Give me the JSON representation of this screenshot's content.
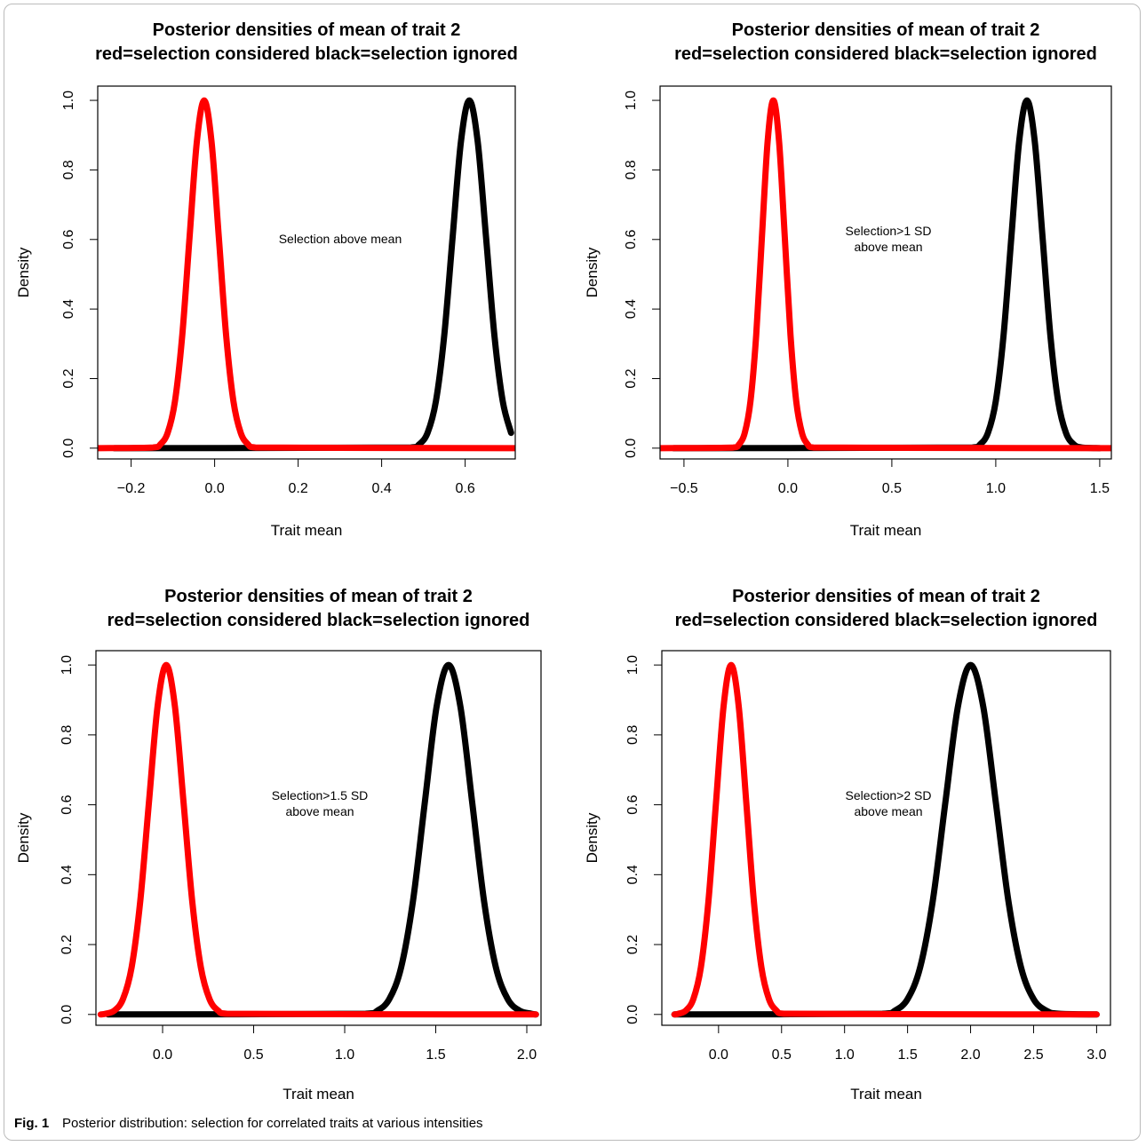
{
  "caption": {
    "label": "Fig. 1",
    "text": "Posterior distribution: selection for correlated traits at various intensities"
  },
  "chart_data": [
    {
      "type": "line",
      "title": "Posterior densities of mean of trait 2",
      "subtitle": "red=selection considered black=selection ignored",
      "annotation": [
        "Selection above mean"
      ],
      "x_label": "Trait mean",
      "y_label": "Density",
      "xlim": [
        -0.28,
        0.72
      ],
      "ylim": [
        -0.031,
        1.041
      ],
      "xticks": [
        {
          "value": -0.2,
          "label": "−0.2"
        },
        {
          "value": 0,
          "label": "0.0"
        },
        0.2,
        0.4,
        0.6
      ],
      "yticks": [
        {
          "value": 0,
          "label": "0.0"
        },
        0.2,
        0.4,
        0.6,
        0.8,
        {
          "value": 1,
          "label": "1.0"
        }
      ],
      "series": [
        {
          "color": "#000000",
          "x": [
            -0.24,
            0.47,
            0.49,
            0.51,
            0.53,
            0.55,
            0.57,
            0.59,
            0.61,
            0.63,
            0.65,
            0.67,
            0.69,
            0.71
          ],
          "values": [
            0,
            0.002,
            0.011,
            0.044,
            0.135,
            0.325,
            0.607,
            0.882,
            1,
            0.882,
            0.607,
            0.325,
            0.135,
            0.044
          ]
        },
        {
          "color": "#ff0000",
          "x": [
            -0.28,
            -0.1475,
            -0.13,
            -0.1125,
            -0.095,
            -0.0775,
            -0.06,
            -0.0425,
            -0.025,
            -0.0075,
            0.01,
            0.0275,
            0.045,
            0.0625,
            0.08,
            0.0975,
            0.72
          ],
          "values": [
            0,
            0.002,
            0.011,
            0.044,
            0.135,
            0.325,
            0.607,
            0.882,
            1,
            0.882,
            0.607,
            0.325,
            0.135,
            0.044,
            0.011,
            0.002,
            0
          ]
        }
      ]
    },
    {
      "type": "line",
      "title": "Posterior densities of mean of trait 2",
      "subtitle": "red=selection considered black=selection ignored",
      "annotation": [
        "Selection>1 SD",
        "above mean"
      ],
      "x_label": "Trait mean",
      "y_label": "Density",
      "xlim": [
        -0.615,
        1.556
      ],
      "ylim": [
        -0.031,
        1.041
      ],
      "xticks": [
        {
          "value": -0.5,
          "label": "−0.5"
        },
        {
          "value": 0,
          "label": "0.0"
        },
        0.5,
        {
          "value": 1,
          "label": "1.0"
        },
        1.5
      ],
      "yticks": [
        {
          "value": 0,
          "label": "0.0"
        },
        0.2,
        0.4,
        0.6,
        0.8,
        {
          "value": 1,
          "label": "1.0"
        }
      ],
      "series": [
        {
          "color": "#000000",
          "x": [
            -0.55,
            0.8875,
            0.925,
            0.9625,
            1.0,
            1.0375,
            1.075,
            1.1125,
            1.15,
            1.1875,
            1.225,
            1.2625,
            1.3,
            1.3375,
            1.375,
            1.4125,
            1.5
          ],
          "values": [
            0,
            0.002,
            0.011,
            0.044,
            0.135,
            0.325,
            0.607,
            0.882,
            1,
            0.882,
            0.607,
            0.325,
            0.135,
            0.044,
            0.011,
            0.002,
            0
          ]
        },
        {
          "color": "#ff0000",
          "x": [
            -0.615,
            -0.2625,
            -0.235,
            -0.2075,
            -0.18,
            -0.1525,
            -0.125,
            -0.0975,
            -0.07,
            -0.0425,
            -0.015,
            0.0125,
            0.04,
            0.0675,
            0.095,
            0.1225,
            1.556
          ],
          "values": [
            0,
            0.002,
            0.011,
            0.044,
            0.135,
            0.325,
            0.607,
            0.882,
            1,
            0.882,
            0.607,
            0.325,
            0.135,
            0.044,
            0.011,
            0.002,
            0
          ]
        }
      ]
    },
    {
      "type": "line",
      "title": "Posterior densities of mean of trait 2",
      "subtitle": "red=selection considered black=selection ignored",
      "annotation": [
        "Selection>1.5 SD",
        "above mean"
      ],
      "x_label": "Trait mean",
      "y_label": "Density",
      "xlim": [
        -0.366,
        2.078
      ],
      "ylim": [
        -0.031,
        1.041
      ],
      "xticks": [
        {
          "value": 0,
          "label": "0.0"
        },
        0.5,
        {
          "value": 1,
          "label": "1.0"
        },
        1.5,
        {
          "value": 2,
          "label": "2.0"
        }
      ],
      "yticks": [
        {
          "value": 0,
          "label": "0.0"
        },
        0.2,
        0.4,
        0.6,
        0.8,
        {
          "value": 1,
          "label": "1.0"
        }
      ],
      "series": [
        {
          "color": "#000000",
          "x": [
            -0.3,
            1.115,
            1.18,
            1.245,
            1.31,
            1.375,
            1.44,
            1.505,
            1.57,
            1.635,
            1.7,
            1.765,
            1.83,
            1.895,
            1.96,
            2.025,
            2.05
          ],
          "values": [
            0,
            0.002,
            0.011,
            0.044,
            0.135,
            0.325,
            0.607,
            0.882,
            1,
            0.882,
            0.607,
            0.325,
            0.135,
            0.044,
            0.011,
            0.002,
            0
          ]
        },
        {
          "color": "#ff0000",
          "x": [
            -0.34,
            -0.3125,
            -0.265,
            -0.2175,
            -0.17,
            -0.1225,
            -0.075,
            -0.0275,
            0.02,
            0.0675,
            0.115,
            0.1625,
            0.21,
            0.2575,
            0.305,
            0.3525,
            2.05
          ],
          "values": [
            0,
            0.002,
            0.011,
            0.044,
            0.135,
            0.325,
            0.607,
            0.882,
            1,
            0.882,
            0.607,
            0.325,
            0.135,
            0.044,
            0.011,
            0.002,
            0
          ]
        }
      ]
    },
    {
      "type": "line",
      "title": "Posterior densities of mean of trait 2",
      "subtitle": "red=selection considered black=selection ignored",
      "annotation": [
        "Selection>2 SD",
        "above mean"
      ],
      "x_label": "Trait mean",
      "y_label": "Density",
      "xlim": [
        -0.45,
        3.11
      ],
      "ylim": [
        -0.031,
        1.041
      ],
      "xticks": [
        {
          "value": 0,
          "label": "0.0"
        },
        0.5,
        {
          "value": 1,
          "label": "1.0"
        },
        1.5,
        {
          "value": 2,
          "label": "2.0"
        },
        2.5,
        {
          "value": 3,
          "label": "3.0"
        }
      ],
      "yticks": [
        {
          "value": 0,
          "label": "0.0"
        },
        0.2,
        0.4,
        0.6,
        0.8,
        {
          "value": 1,
          "label": "1.0"
        }
      ],
      "series": [
        {
          "color": "#000000",
          "x": [
            -0.35,
            1.3,
            1.4,
            1.5,
            1.6,
            1.7,
            1.8,
            1.9,
            2.0,
            2.1,
            2.2,
            2.3,
            2.4,
            2.5,
            2.6,
            2.7,
            3.0
          ],
          "values": [
            0,
            0.002,
            0.011,
            0.044,
            0.135,
            0.325,
            0.607,
            0.882,
            1,
            0.882,
            0.607,
            0.325,
            0.135,
            0.044,
            0.011,
            0.002,
            0
          ]
        },
        {
          "color": "#ff0000",
          "x": [
            -0.35,
            -0.32,
            -0.26,
            -0.2,
            -0.14,
            -0.08,
            -0.02,
            0.04,
            0.1,
            0.16,
            0.22,
            0.28,
            0.34,
            0.4,
            0.46,
            0.52,
            3.0
          ],
          "values": [
            0,
            0.002,
            0.011,
            0.044,
            0.135,
            0.325,
            0.607,
            0.882,
            1,
            0.882,
            0.607,
            0.325,
            0.135,
            0.044,
            0.011,
            0.002,
            0
          ]
        }
      ]
    }
  ]
}
